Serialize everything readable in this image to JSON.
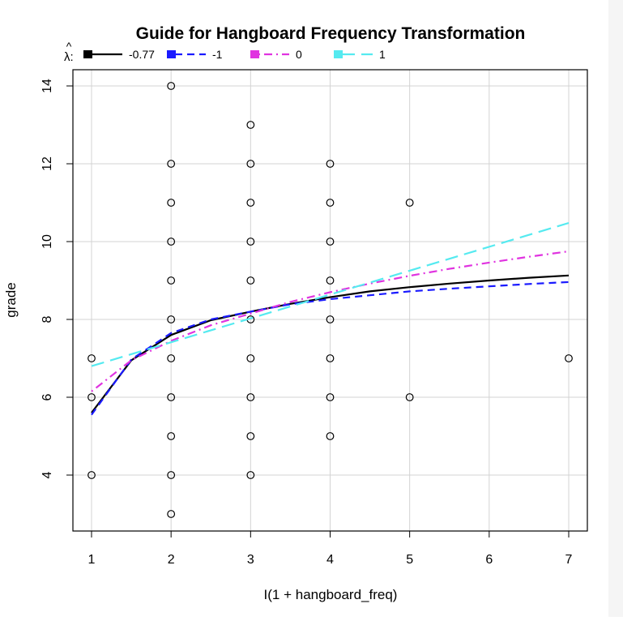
{
  "chart_data": {
    "type": "scatter",
    "title": "Guide for Hangboard Frequency Transformation",
    "xlabel": "I(1 + hangboard_freq)",
    "ylabel": "grade",
    "xlim": [
      1,
      7
    ],
    "ylim": [
      3,
      14
    ],
    "x_ticks": [
      1,
      2,
      3,
      4,
      5,
      6,
      7
    ],
    "y_ticks": [
      4,
      6,
      8,
      10,
      12,
      14
    ],
    "grid": true,
    "legend": {
      "placement": "top",
      "title": "λ:",
      "entries": [
        {
          "label": "-0.77",
          "color": "#000000",
          "dash": "solid",
          "lambda": -0.77
        },
        {
          "label": "-1",
          "color": "#1a1aff",
          "dash": "dashed",
          "lambda": -1
        },
        {
          "label": "0",
          "color": "#e033e0",
          "dash": "dotdash",
          "lambda": 0
        },
        {
          "label": "1",
          "color": "#55eaf0",
          "dash": "longdash",
          "lambda": 1
        }
      ]
    },
    "points": [
      [
        1,
        7
      ],
      [
        1,
        6
      ],
      [
        1,
        4
      ],
      [
        2,
        14
      ],
      [
        2,
        12
      ],
      [
        2,
        11
      ],
      [
        2,
        10
      ],
      [
        2,
        9
      ],
      [
        2,
        8
      ],
      [
        2,
        7
      ],
      [
        2,
        6
      ],
      [
        2,
        5
      ],
      [
        2,
        4
      ],
      [
        2,
        3
      ],
      [
        3,
        13
      ],
      [
        3,
        12
      ],
      [
        3,
        11
      ],
      [
        3,
        10
      ],
      [
        3,
        9
      ],
      [
        3,
        8
      ],
      [
        3,
        7
      ],
      [
        3,
        6
      ],
      [
        3,
        5
      ],
      [
        3,
        4
      ],
      [
        4,
        12
      ],
      [
        4,
        11
      ],
      [
        4,
        10
      ],
      [
        4,
        9
      ],
      [
        4,
        8
      ],
      [
        4,
        7
      ],
      [
        4,
        6
      ],
      [
        4,
        5
      ],
      [
        5,
        11
      ],
      [
        5,
        6
      ],
      [
        7,
        7
      ]
    ],
    "series": [
      {
        "name": "-0.77",
        "x": [
          1,
          1.5,
          2,
          2.5,
          3,
          3.5,
          4,
          4.5,
          5,
          5.5,
          6,
          6.5,
          7
        ],
        "values": [
          5.6,
          6.95,
          7.6,
          7.98,
          8.2,
          8.4,
          8.57,
          8.72,
          8.83,
          8.92,
          9.0,
          9.07,
          9.13
        ]
      },
      {
        "name": "-1",
        "x": [
          1,
          1.5,
          2,
          2.5,
          3,
          3.5,
          4,
          4.5,
          5,
          5.5,
          6,
          6.5,
          7
        ],
        "values": [
          5.55,
          6.97,
          7.65,
          8.0,
          8.2,
          8.39,
          8.52,
          8.62,
          8.72,
          8.79,
          8.85,
          8.91,
          8.96
        ]
      },
      {
        "name": "0",
        "x": [
          1,
          1.5,
          2,
          2.5,
          3,
          3.5,
          4,
          4.5,
          5,
          5.5,
          6,
          6.5,
          7
        ],
        "values": [
          6.15,
          6.95,
          7.45,
          7.85,
          8.15,
          8.45,
          8.7,
          8.92,
          9.12,
          9.3,
          9.46,
          9.61,
          9.75
        ]
      },
      {
        "name": "1",
        "x": [
          1,
          7
        ],
        "values": [
          6.8,
          10.48
        ]
      }
    ]
  }
}
